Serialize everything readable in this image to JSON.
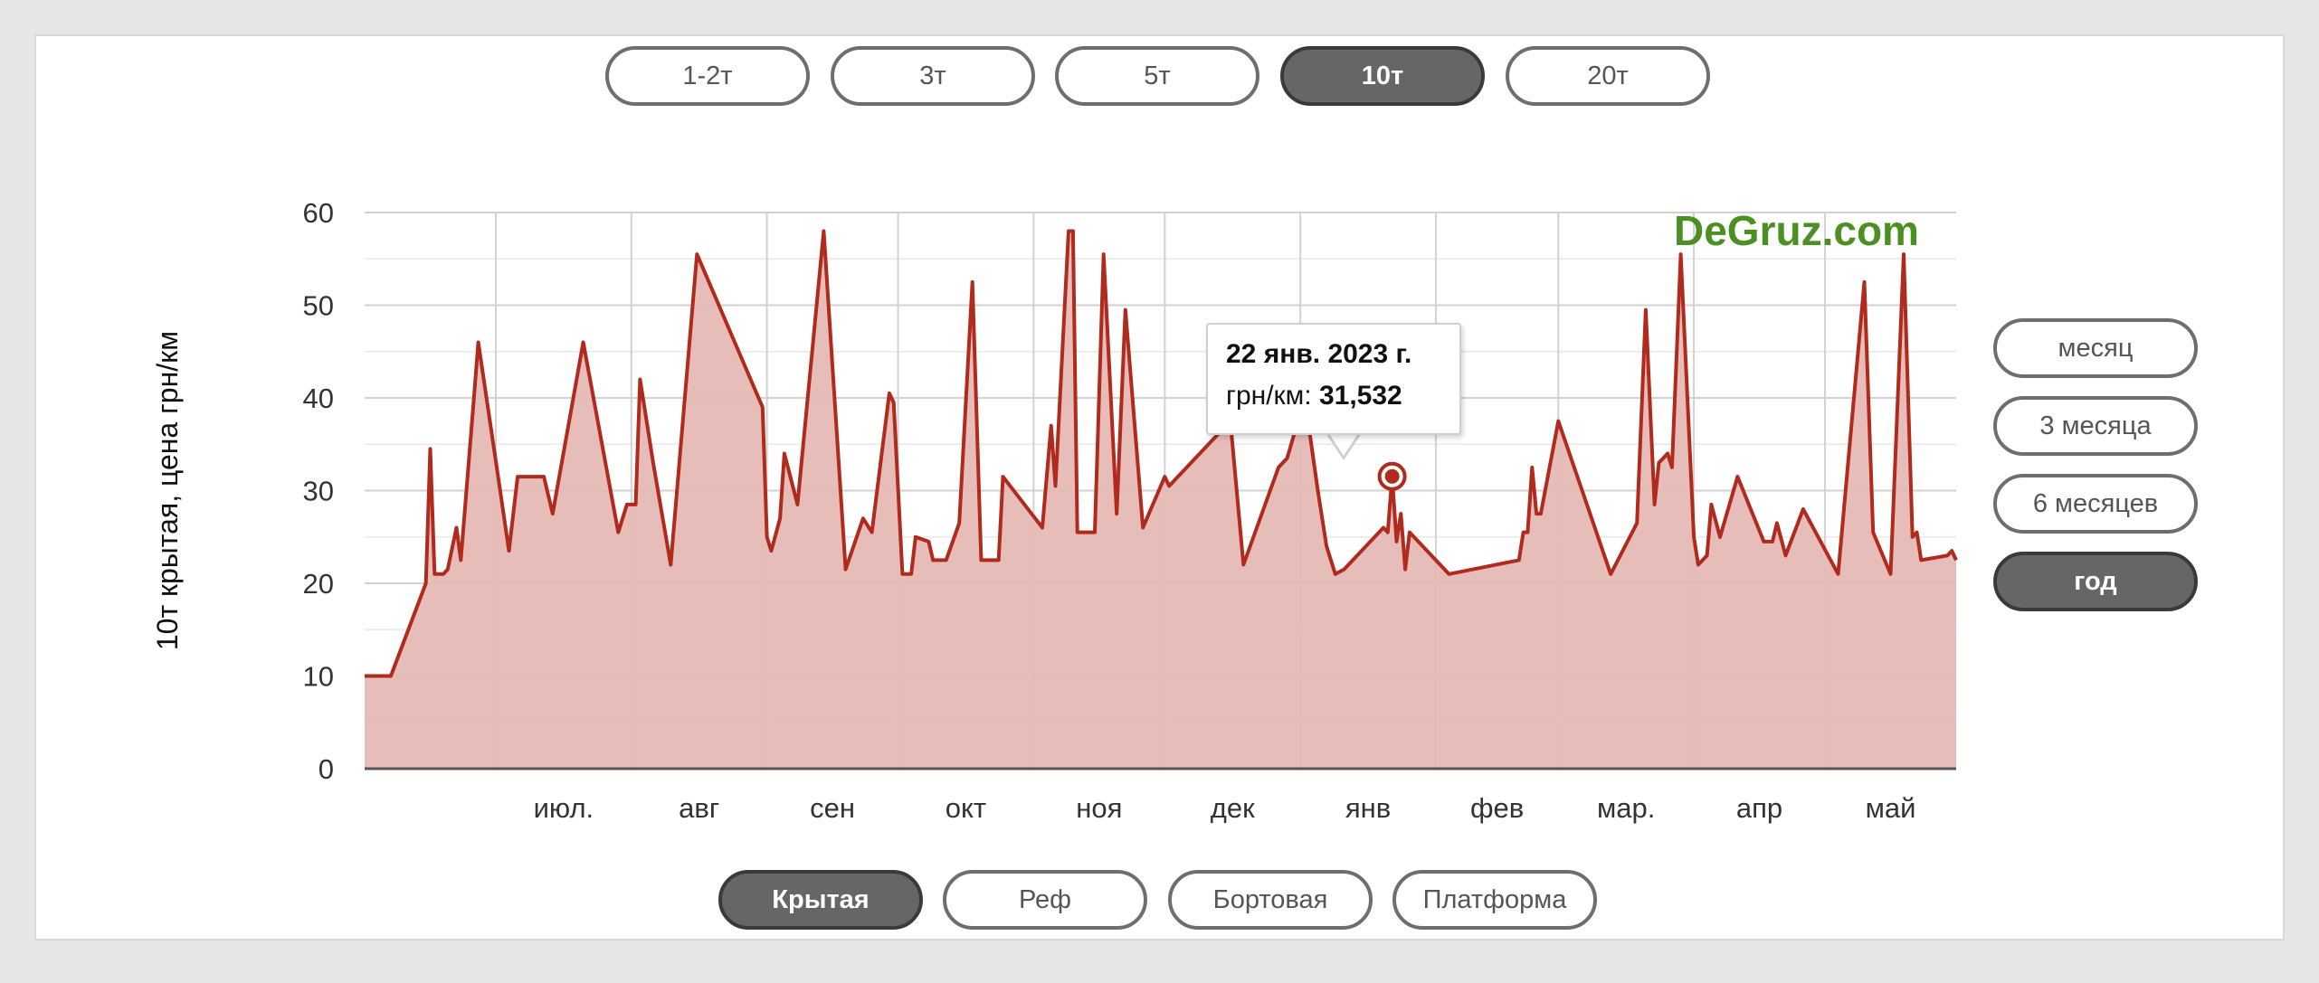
{
  "tonnage_tabs": [
    {
      "label": "1-2т",
      "active": false
    },
    {
      "label": "3т",
      "active": false
    },
    {
      "label": "5т",
      "active": false
    },
    {
      "label": "10т",
      "active": true
    },
    {
      "label": "20т",
      "active": false
    }
  ],
  "period_tabs": [
    {
      "label": "месяц",
      "active": false
    },
    {
      "label": "3 месяца",
      "active": false
    },
    {
      "label": "6 месяцев",
      "active": false
    },
    {
      "label": "год",
      "active": true
    }
  ],
  "body_tabs": [
    {
      "label": "Крытая",
      "active": true
    },
    {
      "label": "Реф",
      "active": false
    },
    {
      "label": "Бортовая",
      "active": false
    },
    {
      "label": "Платформа",
      "active": false
    }
  ],
  "watermark": "DeGruz.com",
  "tooltip": {
    "date": "22 янв. 2023 г.",
    "label": "грн/км:",
    "value": "31,532"
  },
  "colors": {
    "line": "#b02a1e",
    "fill": "#e6b9b6",
    "grid": "#d6d6d6",
    "watermark": "#4c8f22"
  },
  "chart_data": {
    "type": "area",
    "title": "",
    "xlabel": "",
    "ylabel": "10т крытая, цена грн/км",
    "ylim": [
      0,
      60
    ],
    "yticks": [
      0,
      10,
      20,
      30,
      40,
      50,
      60
    ],
    "xlim": [
      "2022-06-01",
      "2023-05-31"
    ],
    "month_ticks": [
      {
        "date": "2022-07-01",
        "label": "июл."
      },
      {
        "date": "2022-08-01",
        "label": "авг"
      },
      {
        "date": "2022-09-01",
        "label": "сен"
      },
      {
        "date": "2022-10-01",
        "label": "окт"
      },
      {
        "date": "2022-11-01",
        "label": "ноя"
      },
      {
        "date": "2022-12-01",
        "label": "дек"
      },
      {
        "date": "2023-01-01",
        "label": "янв"
      },
      {
        "date": "2023-02-01",
        "label": "фев"
      },
      {
        "date": "2023-03-01",
        "label": "мар."
      },
      {
        "date": "2023-04-01",
        "label": "апр"
      },
      {
        "date": "2023-05-01",
        "label": "май"
      }
    ],
    "grid": true,
    "highlight": {
      "x": "2023-01-22",
      "y": 31.532
    },
    "series": [
      {
        "points": [
          [
            "2022-06-01",
            10
          ],
          [
            "2022-06-07",
            10
          ],
          [
            "2022-06-15",
            20
          ],
          [
            "2022-06-16",
            34.5
          ],
          [
            "2022-06-17",
            21
          ],
          [
            "2022-06-19",
            21
          ],
          [
            "2022-06-20",
            21.5
          ],
          [
            "2022-06-22",
            26
          ],
          [
            "2022-06-23",
            22.5
          ],
          [
            "2022-06-26",
            40
          ],
          [
            "2022-06-27",
            46
          ],
          [
            "2022-07-02",
            30
          ],
          [
            "2022-07-04",
            23.5
          ],
          [
            "2022-07-06",
            31.5
          ],
          [
            "2022-07-11",
            31.5
          ],
          [
            "2022-07-12",
            31.5
          ],
          [
            "2022-07-14",
            27.5
          ],
          [
            "2022-07-21",
            46
          ],
          [
            "2022-07-29",
            25.5
          ],
          [
            "2022-07-31",
            28.5
          ],
          [
            "2022-08-02",
            28.5
          ],
          [
            "2022-08-03",
            42
          ],
          [
            "2022-08-06",
            33
          ],
          [
            "2022-08-10",
            22
          ],
          [
            "2022-08-16",
            55.5
          ],
          [
            "2022-08-31",
            39
          ],
          [
            "2022-09-01",
            25
          ],
          [
            "2022-09-02",
            23.5
          ],
          [
            "2022-09-04",
            27
          ],
          [
            "2022-09-05",
            34
          ],
          [
            "2022-09-08",
            28.5
          ],
          [
            "2022-09-14",
            58
          ],
          [
            "2022-09-19",
            21.5
          ],
          [
            "2022-09-23",
            27
          ],
          [
            "2022-09-25",
            25.5
          ],
          [
            "2022-09-29",
            40.5
          ],
          [
            "2022-09-30",
            39.5
          ],
          [
            "2022-10-02",
            21
          ],
          [
            "2022-10-04",
            21
          ],
          [
            "2022-10-05",
            25
          ],
          [
            "2022-10-08",
            24.5
          ],
          [
            "2022-10-09",
            22.5
          ],
          [
            "2022-10-12",
            22.5
          ],
          [
            "2022-10-15",
            26.5
          ],
          [
            "2022-10-18",
            52.5
          ],
          [
            "2022-10-20",
            22.5
          ],
          [
            "2022-10-24",
            22.5
          ],
          [
            "2022-10-25",
            31.5
          ],
          [
            "2022-11-03",
            26
          ],
          [
            "2022-11-05",
            37
          ],
          [
            "2022-11-06",
            30.5
          ],
          [
            "2022-11-09",
            58
          ],
          [
            "2022-11-10",
            58
          ],
          [
            "2022-11-11",
            25.5
          ],
          [
            "2022-11-15",
            25.5
          ],
          [
            "2022-11-17",
            55.5
          ],
          [
            "2022-11-20",
            27.5
          ],
          [
            "2022-11-22",
            49.5
          ],
          [
            "2022-11-26",
            26
          ],
          [
            "2022-12-01",
            31.5
          ],
          [
            "2022-12-02",
            30.5
          ],
          [
            "2022-12-16",
            37.5
          ],
          [
            "2022-12-19",
            22
          ],
          [
            "2022-12-27",
            32.5
          ],
          [
            "2022-12-29",
            33.5
          ],
          [
            "2023-01-02",
            40
          ],
          [
            "2023-01-05",
            30
          ],
          [
            "2023-01-07",
            24
          ],
          [
            "2023-01-09",
            21
          ],
          [
            "2023-01-11",
            21.5
          ],
          [
            "2023-01-20",
            26
          ],
          [
            "2023-01-21",
            25.5
          ],
          [
            "2023-01-22",
            31.532
          ],
          [
            "2023-01-23",
            24.5
          ],
          [
            "2023-01-24",
            27.5
          ],
          [
            "2023-01-25",
            21.5
          ],
          [
            "2023-01-26",
            25.5
          ],
          [
            "2023-02-04",
            21
          ],
          [
            "2023-02-20",
            22.5
          ],
          [
            "2023-02-21",
            25.5
          ],
          [
            "2023-02-22",
            25.5
          ],
          [
            "2023-02-23",
            32.5
          ],
          [
            "2023-02-24",
            27.5
          ],
          [
            "2023-02-25",
            27.5
          ],
          [
            "2023-03-01",
            37.5
          ],
          [
            "2023-03-13",
            21
          ],
          [
            "2023-03-19",
            26.5
          ],
          [
            "2023-03-21",
            49.5
          ],
          [
            "2023-03-23",
            28.5
          ],
          [
            "2023-03-24",
            33
          ],
          [
            "2023-03-26",
            34
          ],
          [
            "2023-03-27",
            32.5
          ],
          [
            "2023-03-29",
            55.5
          ],
          [
            "2023-04-01",
            25
          ],
          [
            "2023-04-02",
            22
          ],
          [
            "2023-04-04",
            23
          ],
          [
            "2023-04-05",
            28.5
          ],
          [
            "2023-04-07",
            25
          ],
          [
            "2023-04-11",
            31.5
          ],
          [
            "2023-04-17",
            24.5
          ],
          [
            "2023-04-19",
            24.5
          ],
          [
            "2023-04-20",
            26.5
          ],
          [
            "2023-04-22",
            23
          ],
          [
            "2023-04-26",
            28
          ],
          [
            "2023-05-04",
            21
          ],
          [
            "2023-05-10",
            52.5
          ],
          [
            "2023-05-12",
            25.5
          ],
          [
            "2023-05-16",
            21
          ],
          [
            "2023-05-19",
            55.5
          ],
          [
            "2023-05-21",
            25
          ],
          [
            "2023-05-22",
            25.5
          ],
          [
            "2023-05-23",
            22.5
          ],
          [
            "2023-05-29",
            23
          ],
          [
            "2023-05-30",
            23.5
          ],
          [
            "2023-05-31",
            22.5
          ]
        ]
      }
    ]
  }
}
